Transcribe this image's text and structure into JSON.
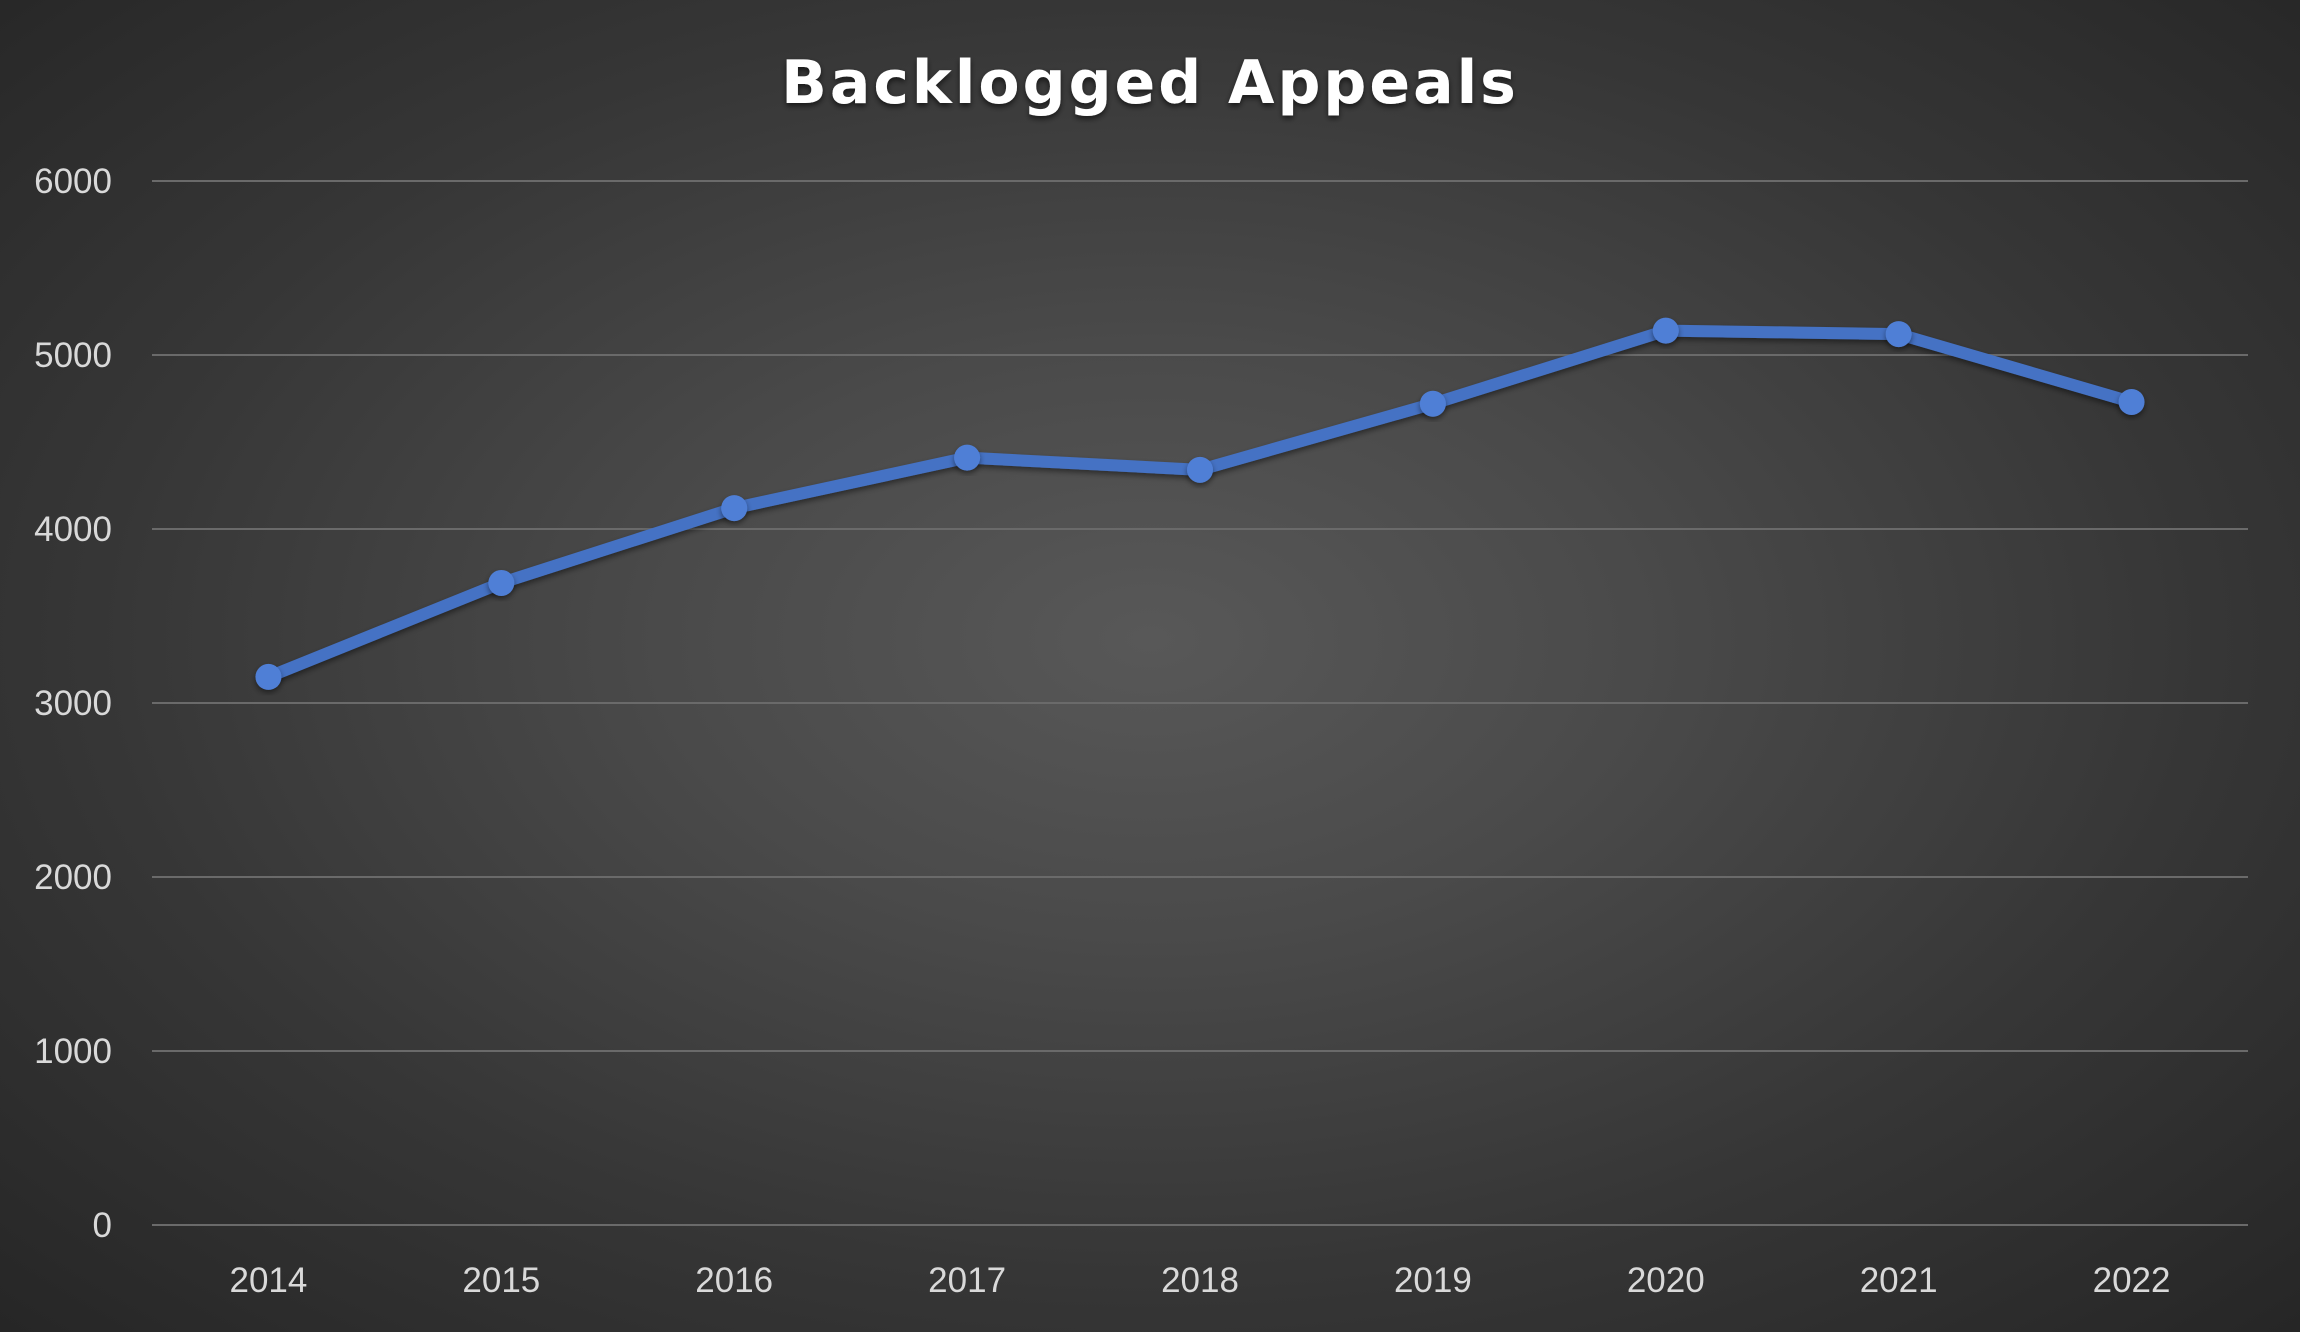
{
  "chart_data": {
    "type": "line",
    "title": "Backlogged Appeals",
    "xlabel": "",
    "ylabel": "",
    "categories": [
      "2014",
      "2015",
      "2016",
      "2017",
      "2018",
      "2019",
      "2020",
      "2021",
      "2022"
    ],
    "series": [
      {
        "values": [
          3150,
          3690,
          4120,
          4410,
          4340,
          4720,
          5140,
          5120,
          4730
        ]
      }
    ],
    "ylim": [
      0,
      6000
    ],
    "yticks": [
      "0",
      "1000",
      "2000",
      "3000",
      "4000",
      "5000",
      "6000"
    ],
    "grid": true,
    "legend": "none",
    "colors": {
      "series": "#4472c4",
      "marker": "#4f7fd6"
    }
  }
}
